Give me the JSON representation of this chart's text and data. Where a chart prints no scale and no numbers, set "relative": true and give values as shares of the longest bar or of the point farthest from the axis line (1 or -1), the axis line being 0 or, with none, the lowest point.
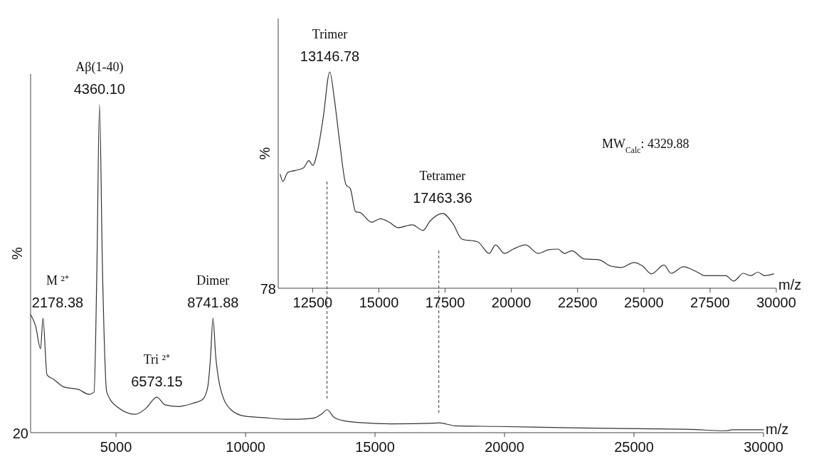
{
  "chart_data": [
    {
      "type": "line",
      "relative": true,
      "xlim": [
        1700,
        30000
      ],
      "xticks": [
        5000,
        10000,
        15000,
        20000,
        25000,
        30000
      ],
      "xlabel": "m/z",
      "ylabel": "%",
      "marker": "none",
      "line_style": "solid",
      "series": [
        {
          "color": "#333333",
          "x": [
            1700,
            1895,
            2085,
            2178,
            2335,
            2580,
            2995,
            3545,
            3955,
            4150,
            4260,
            4360,
            4475,
            4640,
            5055,
            5740,
            6150,
            6573,
            6895,
            7390,
            7940,
            8350,
            8540,
            8650,
            8742,
            8850,
            9040,
            9450,
            10000,
            10685,
            11510,
            12060,
            12610,
            12940,
            13147,
            13430,
            13980,
            15630,
            17280,
            17470,
            18100,
            19750,
            22500,
            25245,
            27170,
            28540,
            28815,
            30000
          ],
          "values": [
            0.36,
            0.325,
            0.256,
            0.349,
            0.176,
            0.163,
            0.139,
            0.132,
            0.117,
            0.124,
            0.5,
            1.0,
            0.5,
            0.124,
            0.078,
            0.056,
            0.074,
            0.108,
            0.085,
            0.08,
            0.089,
            0.102,
            0.139,
            0.232,
            0.349,
            0.232,
            0.132,
            0.069,
            0.05,
            0.046,
            0.041,
            0.041,
            0.044,
            0.057,
            0.07,
            0.046,
            0.034,
            0.027,
            0.029,
            0.03,
            0.021,
            0.019,
            0.015,
            0.012,
            0.01,
            0.006,
            0.009,
            0.009
          ]
        }
      ],
      "ref_lines": [
        {
          "axis": "x",
          "value": 13146.78,
          "line_style": "dashed"
        },
        {
          "axis": "x",
          "value": 17463.36,
          "line_style": "dashed"
        }
      ],
      "annotations": [
        "20",
        {
          "text": "4360.10",
          "x": 4360,
          "y": 1.0
        },
        {
          "text": "Aβ(1-40)",
          "x": 4360,
          "y": 1.0
        },
        {
          "text": "2178.38",
          "x": 2178,
          "y": 0.349
        },
        {
          "text": "M ²⁺",
          "x": 2178,
          "y": 0.349
        },
        {
          "text": "6573.15",
          "x": 6573,
          "y": 0.108
        },
        {
          "text": "Tri ²⁺",
          "x": 6573,
          "y": 0.108
        },
        {
          "text": "8741.88",
          "x": 8742,
          "y": 0.349
        },
        {
          "text": "Dimer",
          "x": 8742,
          "y": 0.349
        }
      ]
    },
    {
      "type": "line",
      "relative": true,
      "xlim": [
        11200,
        30000
      ],
      "xticks": [
        12500,
        15000,
        17500,
        20000,
        22500,
        25000,
        27500,
        30000
      ],
      "xlabel": "m/z",
      "ylabel": "%",
      "marker": "none",
      "line_style": "solid",
      "series": [
        {
          "color": "#333333",
          "x": [
            11275,
            11380,
            11560,
            11830,
            12160,
            12360,
            12500,
            12700,
            12900,
            13147,
            13320,
            13520,
            13760,
            13920,
            14120,
            14300,
            14725,
            15060,
            15393,
            15727,
            16262,
            16663,
            16930,
            17400,
            17800,
            18134,
            18735,
            19163,
            19404,
            19738,
            20072,
            20540,
            21008,
            21410,
            21744,
            22011,
            22280,
            22760,
            23290,
            23760,
            24160,
            24630,
            24960,
            25290,
            25760,
            26030,
            26490,
            27025,
            27290,
            28095,
            28390,
            28760,
            29030,
            29300,
            29565,
            29900
          ],
          "values": [
            0.527,
            0.494,
            0.535,
            0.544,
            0.557,
            0.59,
            0.568,
            0.642,
            0.79,
            1.0,
            0.874,
            0.675,
            0.478,
            0.461,
            0.354,
            0.349,
            0.305,
            0.321,
            0.305,
            0.28,
            0.293,
            0.267,
            0.31,
            0.346,
            0.297,
            0.227,
            0.214,
            0.161,
            0.2,
            0.161,
            0.181,
            0.2,
            0.161,
            0.178,
            0.181,
            0.161,
            0.173,
            0.135,
            0.132,
            0.102,
            0.096,
            0.119,
            0.102,
            0.066,
            0.107,
            0.069,
            0.099,
            0.074,
            0.058,
            0.058,
            0.033,
            0.069,
            0.058,
            0.074,
            0.058,
            0.066
          ]
        }
      ],
      "annotations": [
        "78",
        {
          "text": "13146.78",
          "x": 13147,
          "y": 1.0
        },
        {
          "text": "Trimer",
          "x": 13147,
          "y": 1.0
        },
        {
          "text": "17463.36",
          "x": 17400,
          "y": 0.346
        },
        {
          "text": "Tetramer",
          "x": 17400,
          "y": 0.346
        },
        "MW$_{Calc}$: 4329.88"
      ]
    }
  ]
}
